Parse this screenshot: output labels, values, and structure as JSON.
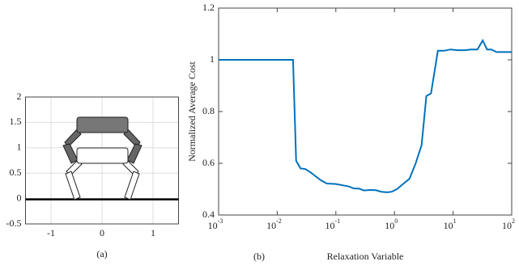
{
  "chart_data": [
    {
      "type": "diagram",
      "caption": "(a)",
      "xlim": [
        -1.5,
        1.5
      ],
      "ylim": [
        -0.5,
        2
      ],
      "xticks": [
        -1,
        0,
        1
      ],
      "yticks": [
        -0.5,
        0,
        0.5,
        1,
        1.5,
        2
      ],
      "grid": true
    },
    {
      "type": "line",
      "caption": "(b)",
      "x_label": "Relaxation Variable",
      "y_label": "Normalized Average Cost",
      "log_x": true,
      "grid": false,
      "xlim": [
        0.001,
        100
      ],
      "ylim": [
        0.4,
        1.2
      ],
      "xticks": [
        {
          "value": 0.001,
          "label": "10",
          "exponent": "-3"
        },
        {
          "value": 0.01,
          "label": "10",
          "exponent": "-2"
        },
        {
          "value": 0.1,
          "label": "10",
          "exponent": "-1"
        },
        {
          "value": 1,
          "label": "10",
          "exponent": "0"
        },
        {
          "value": 10,
          "label": "10",
          "exponent": "1"
        },
        {
          "value": 100,
          "label": "10",
          "exponent": "2"
        }
      ],
      "yticks": [
        0.4,
        0.6,
        0.8,
        1,
        1.2
      ],
      "series": [
        {
          "color": "#0072bd",
          "x": [
            0.001,
            0.0186,
            0.021,
            0.025,
            0.03,
            0.037,
            0.045,
            0.055,
            0.07,
            0.1,
            0.13,
            0.17,
            0.2,
            0.25,
            0.3,
            0.38,
            0.48,
            0.6,
            0.75,
            0.9,
            1.1,
            1.4,
            1.8,
            2.3,
            2.9,
            3.5,
            4.2,
            5.5,
            7,
            9,
            12,
            16,
            20,
            26,
            32,
            38,
            45,
            55,
            70,
            100
          ],
          "values": [
            1.0,
            1.0,
            0.61,
            0.58,
            0.578,
            0.565,
            0.55,
            0.535,
            0.522,
            0.52,
            0.515,
            0.51,
            0.503,
            0.502,
            0.495,
            0.497,
            0.496,
            0.49,
            0.488,
            0.49,
            0.5,
            0.52,
            0.54,
            0.6,
            0.67,
            0.86,
            0.87,
            1.035,
            1.035,
            1.04,
            1.037,
            1.037,
            1.04,
            1.04,
            1.075,
            1.04,
            1.04,
            1.03,
            1.03,
            1.03
          ]
        }
      ]
    }
  ]
}
